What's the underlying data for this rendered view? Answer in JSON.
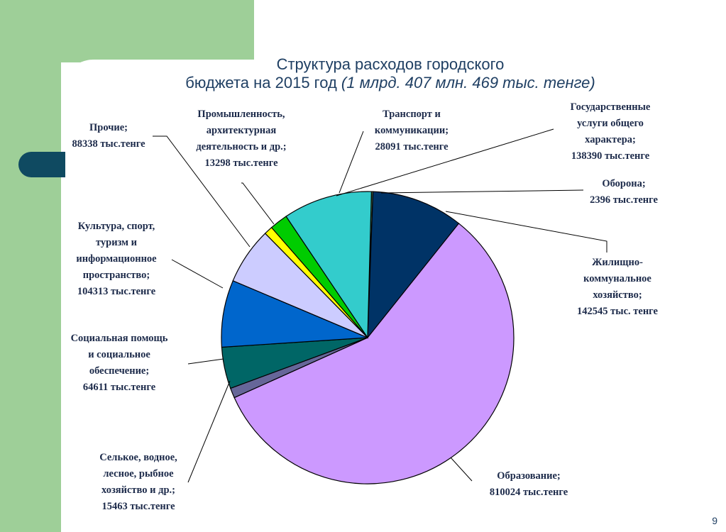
{
  "slide": {
    "title_line1": "Структура расходов городского",
    "title_line2_plain": "бюджета на 2015 год ",
    "title_line2_italic": "(1 млрд. 407 млн. 469 тыс. тенге)",
    "page_number": "9"
  },
  "colors": {
    "background_band": "#9ecf98",
    "tab": "#0f4a61",
    "title": "#1f3f63"
  },
  "chart_data": {
    "type": "pie",
    "title": "Структура расходов городского бюджета на 2015 год (1 млрд. 407 млн. 469 тыс. тенге)",
    "unit": "тыс.тенге",
    "slices": [
      {
        "label_lines": [
          "Оборона;",
          "2396 тыс.тенге"
        ],
        "value": 2396,
        "color": "#4f7f5a"
      },
      {
        "label_lines": [
          "Жилищно-",
          "коммунальное",
          "хозяйство;",
          "142545 тыс. тенге"
        ],
        "value": 142545,
        "color": "#003366"
      },
      {
        "label_lines": [
          "Образование;",
          "810024 тыс.тенге"
        ],
        "value": 810024,
        "color": "#cc99ff"
      },
      {
        "label_lines": [
          "Селькое, водное,",
          "лесное, рыбное",
          "хозяйство и др.;",
          "15463 тыс.тенге"
        ],
        "value": 15463,
        "color": "#666699"
      },
      {
        "label_lines": [
          "Социальная помощь",
          "и социальное",
          "обеспечение;",
          "64611 тыс.тенге"
        ],
        "value": 64611,
        "color": "#006666"
      },
      {
        "label_lines": [
          "Культура, спорт,",
          "туризм и",
          "информационное",
          "пространство;",
          "104313 тыс.тенге"
        ],
        "value": 104313,
        "color": "#0066cc"
      },
      {
        "label_lines": [
          "Прочие;",
          "88338 тыс.тенге"
        ],
        "value": 88338,
        "color": "#ccccff"
      },
      {
        "label_lines": [
          "Промышленность,",
          "архитектурная",
          "деятельность и др.;",
          "13298 тыс.тенге"
        ],
        "value": 13298,
        "color": "#ffff00"
      },
      {
        "label_lines": [
          "Транспорт и",
          "коммуникации;",
          "28091 тыс.тенге"
        ],
        "value": 28091,
        "color": "#00cc00"
      },
      {
        "label_lines": [
          "Государственные",
          "услуги общего",
          "характера;",
          "138390 тыс.тенге"
        ],
        "value": 138390,
        "color": "#33cccc"
      }
    ]
  }
}
